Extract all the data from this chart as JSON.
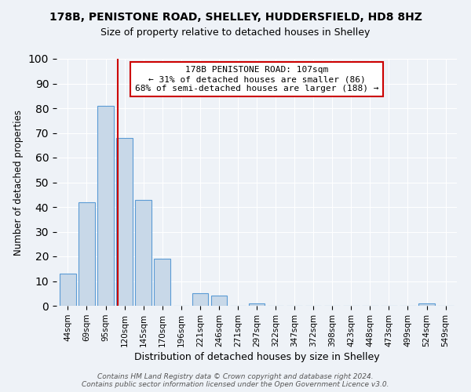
{
  "title": "178B, PENISTONE ROAD, SHELLEY, HUDDERSFIELD, HD8 8HZ",
  "subtitle": "Size of property relative to detached houses in Shelley",
  "xlabel": "Distribution of detached houses by size in Shelley",
  "ylabel": "Number of detached properties",
  "bar_labels": [
    "44sqm",
    "69sqm",
    "95sqm",
    "120sqm",
    "145sqm",
    "170sqm",
    "196sqm",
    "221sqm",
    "246sqm",
    "271sqm",
    "297sqm",
    "322sqm",
    "347sqm",
    "372sqm",
    "398sqm",
    "423sqm",
    "448sqm",
    "473sqm",
    "499sqm",
    "524sqm",
    "549sqm"
  ],
  "bar_values": [
    13,
    42,
    81,
    68,
    43,
    19,
    0,
    5,
    4,
    0,
    1,
    0,
    0,
    0,
    0,
    0,
    0,
    0,
    0,
    1,
    0
  ],
  "bar_color": "#c8d8e8",
  "bar_edge_color": "#5b9bd5",
  "vline_x": 2.65,
  "vline_color": "#cc0000",
  "annotation_line1": "178B PENISTONE ROAD: 107sqm",
  "annotation_line2": "← 31% of detached houses are smaller (86)",
  "annotation_line3": "68% of semi-detached houses are larger (188) →",
  "annotation_box_color": "#ffffff",
  "annotation_box_edge_color": "#cc0000",
  "ylim": [
    0,
    100
  ],
  "yticks": [
    0,
    10,
    20,
    30,
    40,
    50,
    60,
    70,
    80,
    90,
    100
  ],
  "footer_line1": "Contains HM Land Registry data © Crown copyright and database right 2024.",
  "footer_line2": "Contains public sector information licensed under the Open Government Licence v3.0.",
  "bg_color": "#eef2f7",
  "plot_bg_color": "#eef2f7"
}
